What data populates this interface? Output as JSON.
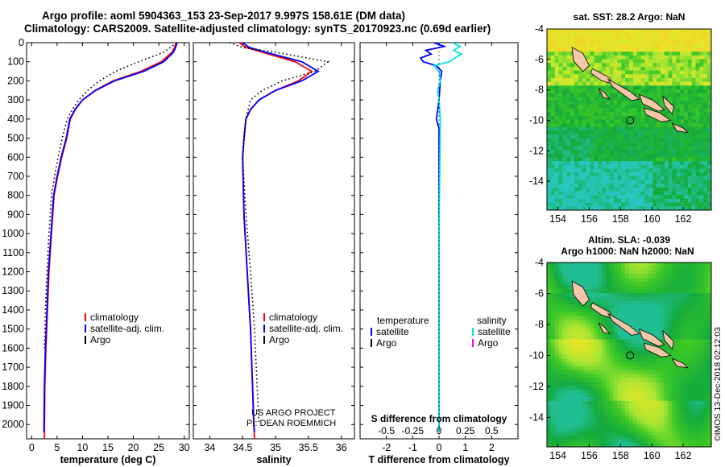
{
  "header": {
    "line1": "Argo profile: aoml 5904363_153 23-Sep-2017 9.997S 158.61E (DM data)",
    "line2": "Climatology: CARS2009. Satellite-adjusted climatology: synTS_20170923.nc (0.69d earlier)"
  },
  "colors": {
    "climatology": "#ff0000",
    "satellite": "#0000ff",
    "argo": "#000000",
    "sal_satellite": "#00e5e5",
    "sal_argo": "#ff00ff",
    "land": "#f4c6a8"
  },
  "credit": {
    "line1": "US ARGO PROJECT",
    "line2": "PI: DEAN ROEMMICH",
    "imos": "©IMOS 13-Dec-2018 02:12:03"
  },
  "chart_data": [
    {
      "type": "line",
      "id": "temperature",
      "xlabel": "temperature (deg C)",
      "ylabel": "",
      "xlim": [
        -1,
        31
      ],
      "ylim": [
        2075,
        0
      ],
      "x_ticks": [
        0,
        5,
        10,
        15,
        20,
        25,
        30
      ],
      "x_tick_labels": [
        "0",
        "5",
        "10",
        "15",
        "20",
        "25",
        "30"
      ],
      "y_ticks": [
        0,
        100,
        200,
        300,
        400,
        500,
        600,
        700,
        800,
        900,
        1000,
        1100,
        1200,
        1300,
        1400,
        1500,
        1600,
        1700,
        1800,
        1900,
        2000
      ],
      "y_tick_labels": [
        "0",
        "100",
        "200",
        "300",
        "400",
        "500",
        "600",
        "700",
        "800",
        "900",
        "1000",
        "1100",
        "1200",
        "1300",
        "1400",
        "1500",
        "1600",
        "1700",
        "1800",
        "1900",
        "2000"
      ],
      "legend": [
        "climatology",
        "satellite-adj. clim.",
        "Argo"
      ],
      "series": [
        {
          "name": "climatology",
          "color": "#ff0000",
          "style": "solid",
          "x": [
            28.4,
            28.1,
            27.6,
            25.5,
            21.5,
            16.0,
            12.5,
            10.0,
            8.6,
            7.6,
            6.9,
            5.9,
            5.1,
            4.4,
            3.9,
            3.4,
            3.1,
            2.8,
            2.6,
            2.5
          ],
          "y": [
            0,
            25,
            50,
            100,
            150,
            200,
            250,
            300,
            350,
            400,
            500,
            600,
            700,
            800,
            1000,
            1200,
            1400,
            1600,
            1800,
            2075
          ]
        },
        {
          "name": "satellite-adj. clim.",
          "color": "#0000ff",
          "style": "solid",
          "x": [
            28.6,
            28.3,
            27.9,
            26.0,
            22.0,
            16.3,
            12.6,
            10.0,
            8.5,
            7.5,
            6.8,
            5.8,
            5.0,
            4.3,
            3.8,
            3.3,
            3.0,
            2.7,
            2.5,
            2.4
          ],
          "y": [
            0,
            25,
            50,
            100,
            150,
            200,
            250,
            300,
            350,
            400,
            500,
            600,
            700,
            800,
            1000,
            1200,
            1400,
            1600,
            1800,
            2040
          ]
        },
        {
          "name": "Argo",
          "color": "#000000",
          "style": "dotted",
          "x": [
            28.5,
            26.0,
            21.0,
            16.5,
            13.3,
            11.0,
            9.3,
            8.0,
            7.0,
            6.0,
            5.2,
            4.5,
            3.9,
            3.4,
            3.0,
            2.7,
            2.5
          ],
          "y": [
            0,
            50,
            100,
            150,
            200,
            250,
            300,
            350,
            400,
            500,
            600,
            700,
            800,
            1000,
            1200,
            1400,
            1600
          ]
        }
      ]
    },
    {
      "type": "line",
      "id": "salinity",
      "xlabel": "salinity",
      "ylabel": "",
      "xlim": [
        33.75,
        36.2
      ],
      "ylim": [
        2075,
        0
      ],
      "x_ticks": [
        34,
        34.5,
        35,
        35.5,
        36
      ],
      "x_tick_labels": [
        "34",
        "34.5",
        "35",
        "35.5",
        "36"
      ],
      "legend": [
        "climatology",
        "satellite-adj. clim.",
        "Argo"
      ],
      "series": [
        {
          "name": "climatology",
          "color": "#ff0000",
          "style": "solid",
          "x": [
            34.45,
            34.55,
            34.8,
            35.3,
            35.55,
            35.35,
            35.0,
            34.75,
            34.62,
            34.55,
            34.52,
            34.5,
            34.52,
            34.57,
            34.62,
            34.65,
            34.67,
            34.68
          ],
          "y": [
            0,
            25,
            50,
            100,
            150,
            200,
            250,
            300,
            350,
            400,
            500,
            600,
            900,
            1200,
            1500,
            1800,
            2000,
            2075
          ]
        },
        {
          "name": "satellite-adj. clim.",
          "color": "#0000ff",
          "style": "solid",
          "x": [
            34.5,
            34.6,
            34.85,
            35.4,
            35.65,
            35.4,
            35.0,
            34.75,
            34.62,
            34.55,
            34.52,
            34.5,
            34.52,
            34.57,
            34.62,
            34.65,
            34.67,
            34.68
          ],
          "y": [
            0,
            25,
            50,
            100,
            150,
            200,
            250,
            300,
            350,
            400,
            500,
            600,
            900,
            1200,
            1500,
            1800,
            2000,
            2040
          ]
        },
        {
          "name": "Argo",
          "color": "#000000",
          "style": "dotted",
          "x": [
            34.3,
            34.5,
            35.0,
            35.8,
            35.6,
            35.1,
            34.8,
            34.62,
            34.55,
            34.5,
            34.55,
            34.62,
            34.68,
            34.72,
            34.75
          ],
          "y": [
            0,
            25,
            50,
            100,
            150,
            200,
            250,
            300,
            400,
            600,
            900,
            1200,
            1500,
            1800,
            2000
          ]
        }
      ]
    },
    {
      "type": "line",
      "id": "difference",
      "xlabel": "T difference from climatology",
      "xlabel2": "S difference from climatology",
      "xlim": [
        -3,
        3
      ],
      "ylim": [
        2075,
        0
      ],
      "x_ticks": [
        -2,
        -1,
        0,
        1,
        2
      ],
      "x_tick_labels": [
        "-2",
        "-1",
        "0",
        "1",
        "2"
      ],
      "x2_ticks": [
        -2,
        -1,
        0,
        1,
        2
      ],
      "x2_tick_labels": [
        "-0.5",
        "-0.25",
        "0",
        "0.25",
        "0.5"
      ],
      "legend_left_title": "temperature",
      "legend_right_title": "salinity",
      "legend_left": [
        "satellite",
        "Argo"
      ],
      "legend_right": [
        "satellite",
        "Argo"
      ],
      "series": [
        {
          "name": "temperature satellite",
          "color": "#0000ff",
          "style": "solid",
          "x": [
            -0.2,
            0.2,
            -0.5,
            -0.3,
            -0.7,
            -0.6,
            -0.1,
            0.1,
            0.05,
            0.0,
            -0.05,
            -0.1,
            0.0,
            0.0,
            0.0,
            0.0,
            0.0,
            0.0,
            0.0
          ],
          "y": [
            0,
            20,
            40,
            60,
            80,
            100,
            120,
            150,
            200,
            300,
            350,
            400,
            450,
            500,
            700,
            1000,
            1500,
            1900,
            2040
          ]
        },
        {
          "name": "salinity satellite",
          "color": "#00e5e5",
          "style": "solid",
          "x": [
            0.5,
            0.8,
            0.55,
            0.85,
            0.6,
            0.4,
            -0.2,
            0.0,
            0.05,
            -0.05,
            0.0,
            0.05,
            0.0,
            0.0,
            0.0
          ],
          "y": [
            0,
            20,
            40,
            60,
            80,
            100,
            120,
            150,
            200,
            250,
            300,
            400,
            1000,
            1500,
            2040
          ]
        }
      ]
    },
    {
      "type": "heatmap",
      "id": "sst_map",
      "title": "sat. SST: 28.2 Argo: NaN",
      "xlim": [
        153.3,
        163.8
      ],
      "ylim": [
        -15.9,
        -4
      ],
      "x_ticks": [
        154,
        156,
        158,
        160,
        162
      ],
      "x_tick_labels": [
        "154",
        "156",
        "158",
        "160",
        "162"
      ],
      "y_ticks": [
        -4,
        -6,
        -8,
        -10,
        -12,
        -14
      ],
      "y_tick_labels": [
        "-4",
        "-6",
        "-8",
        "-10",
        "-12",
        "-14"
      ],
      "profile_lon": 158.61,
      "profile_lat": -9.997
    },
    {
      "type": "heatmap",
      "id": "sla_map",
      "title": "Altim. SLA: -0.039",
      "subtitle": "Argo h1000: NaN h2000: NaN",
      "xlim": [
        153.3,
        163.8
      ],
      "ylim": [
        -15.9,
        -4
      ],
      "x_ticks": [
        154,
        156,
        158,
        160,
        162
      ],
      "x_tick_labels": [
        "154",
        "156",
        "158",
        "160",
        "162"
      ],
      "y_ticks": [
        -4,
        -6,
        -8,
        -10,
        -12,
        -14
      ],
      "y_tick_labels": [
        "-4",
        "-6",
        "-8",
        "-10",
        "-12",
        "-14"
      ],
      "profile_lon": 158.61,
      "profile_lat": -9.997
    }
  ]
}
